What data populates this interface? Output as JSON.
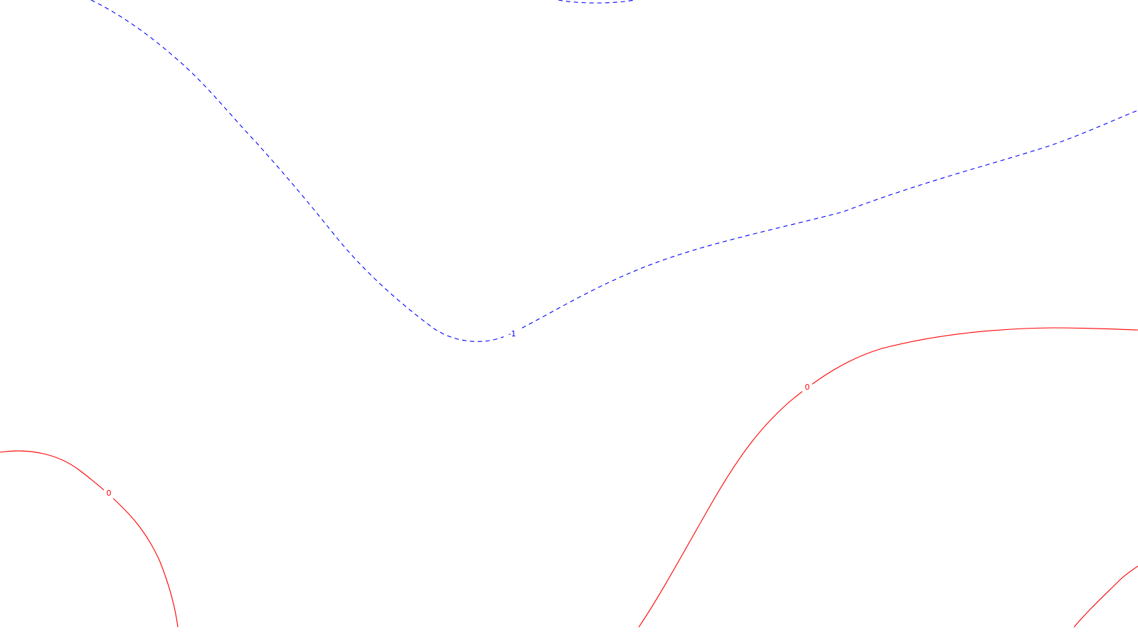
{
  "colors": {
    "background": "#ffffff",
    "negative_contour": "#0000ff",
    "zero_contour": "#ff0000"
  },
  "contours": [
    {
      "id": "contour-minus-1-main",
      "level": -1,
      "style": "dashed",
      "color": "#0000ff",
      "label": "-1"
    },
    {
      "id": "contour-minus-1-top",
      "level": -1,
      "style": "dashed",
      "color": "#0000ff",
      "label": null
    },
    {
      "id": "contour-0-right",
      "level": 0,
      "style": "solid",
      "color": "#ff0000",
      "label": "0"
    },
    {
      "id": "contour-0-left",
      "level": 0,
      "style": "solid",
      "color": "#ff0000",
      "label": "0"
    },
    {
      "id": "contour-0-corner",
      "level": 0,
      "style": "solid",
      "color": "#ff0000",
      "label": null
    }
  ]
}
